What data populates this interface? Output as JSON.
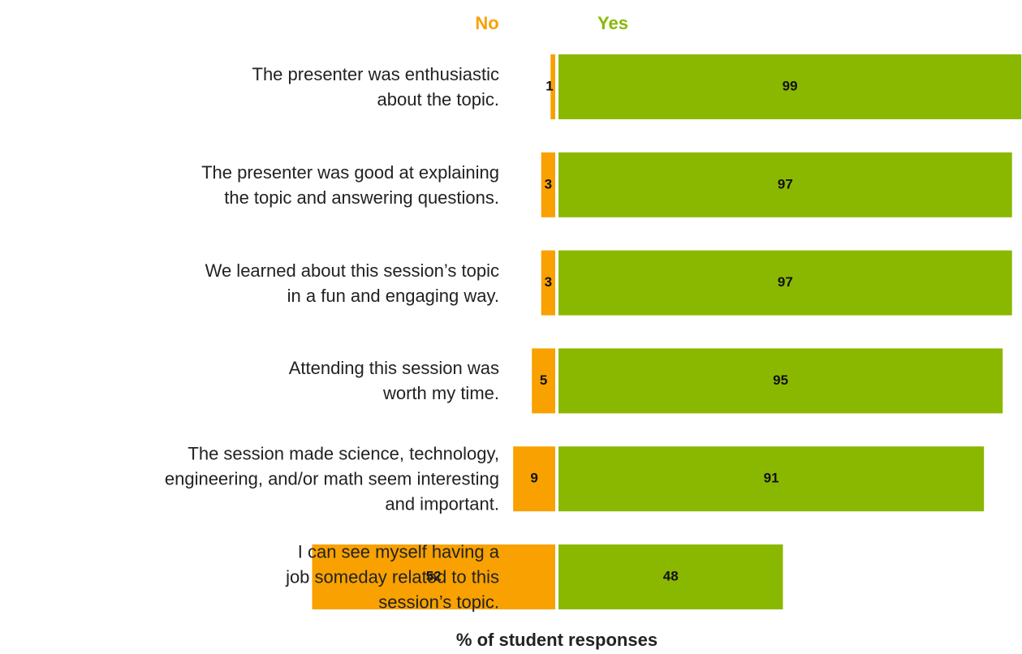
{
  "chart_data": {
    "type": "diverging_bar",
    "x_label": "% of student responses",
    "categories": [
      "The presenter was enthusiastic\nabout the topic.",
      "The presenter was good at explaining\nthe topic and answering questions.",
      "We learned about this session’s topic\nin a fun and engaging way.",
      "Attending this session was\nworth my time.",
      "The session made science, technology,\nengineering, and/or math seem interesting\nand important.",
      "I can see myself having a\njob someday related to this\nsession’s topic."
    ],
    "series": [
      {
        "name": "No",
        "color": "#f8a100",
        "values": [
          1,
          3,
          3,
          5,
          9,
          52
        ]
      },
      {
        "name": "Yes",
        "color": "#8ab800",
        "values": [
          99,
          97,
          97,
          95,
          91,
          48
        ]
      }
    ]
  }
}
